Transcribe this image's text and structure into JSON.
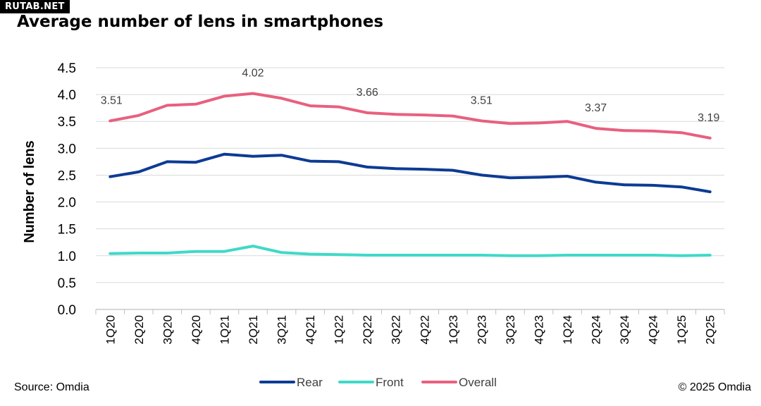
{
  "watermark": "RUTAB.NET",
  "title": "Average number of lens in smartphones",
  "source": "Source: Omdia",
  "copyright": "© 2025 Omdia",
  "chart_data": {
    "type": "line",
    "title": "Average number of lens in smartphones",
    "xlabel": "",
    "ylabel": "Number of lens",
    "ylim": [
      0,
      4.5
    ],
    "yticks": [
      "0.0",
      "0.5",
      "1.0",
      "1.5",
      "2.0",
      "2.5",
      "3.0",
      "3.5",
      "4.0",
      "4.5"
    ],
    "grid": true,
    "legend_position": "bottom",
    "categories": [
      "1Q20",
      "2Q20",
      "3Q20",
      "4Q20",
      "1Q21",
      "2Q21",
      "3Q21",
      "4Q21",
      "1Q22",
      "2Q22",
      "3Q22",
      "4Q22",
      "1Q23",
      "2Q23",
      "3Q23",
      "4Q23",
      "1Q24",
      "2Q24",
      "3Q24",
      "4Q24",
      "1Q25",
      "2Q25"
    ],
    "series": [
      {
        "name": "Rear",
        "color": "#0d3b94",
        "values": [
          2.47,
          2.56,
          2.75,
          2.74,
          2.89,
          2.85,
          2.87,
          2.76,
          2.75,
          2.65,
          2.62,
          2.61,
          2.59,
          2.5,
          2.45,
          2.46,
          2.48,
          2.37,
          2.32,
          2.31,
          2.28,
          2.19
        ]
      },
      {
        "name": "Front",
        "color": "#40d9c8",
        "values": [
          1.04,
          1.05,
          1.05,
          1.08,
          1.08,
          1.18,
          1.06,
          1.03,
          1.02,
          1.01,
          1.01,
          1.01,
          1.01,
          1.01,
          1.0,
          1.0,
          1.01,
          1.01,
          1.01,
          1.01,
          1.0,
          1.01
        ]
      },
      {
        "name": "Overall",
        "color": "#e8607f",
        "values": [
          3.51,
          3.61,
          3.8,
          3.82,
          3.97,
          4.02,
          3.93,
          3.79,
          3.77,
          3.66,
          3.63,
          3.62,
          3.6,
          3.51,
          3.46,
          3.47,
          3.5,
          3.37,
          3.33,
          3.32,
          3.29,
          3.19
        ]
      }
    ],
    "annotations": [
      {
        "series": "Overall",
        "category": "1Q20",
        "label": "3.51"
      },
      {
        "series": "Overall",
        "category": "2Q21",
        "label": "4.02"
      },
      {
        "series": "Overall",
        "category": "2Q22",
        "label": "3.66"
      },
      {
        "series": "Overall",
        "category": "2Q23",
        "label": "3.51"
      },
      {
        "series": "Overall",
        "category": "2Q24",
        "label": "3.37"
      },
      {
        "series": "Overall",
        "category": "2Q25",
        "label": "3.19"
      }
    ]
  }
}
